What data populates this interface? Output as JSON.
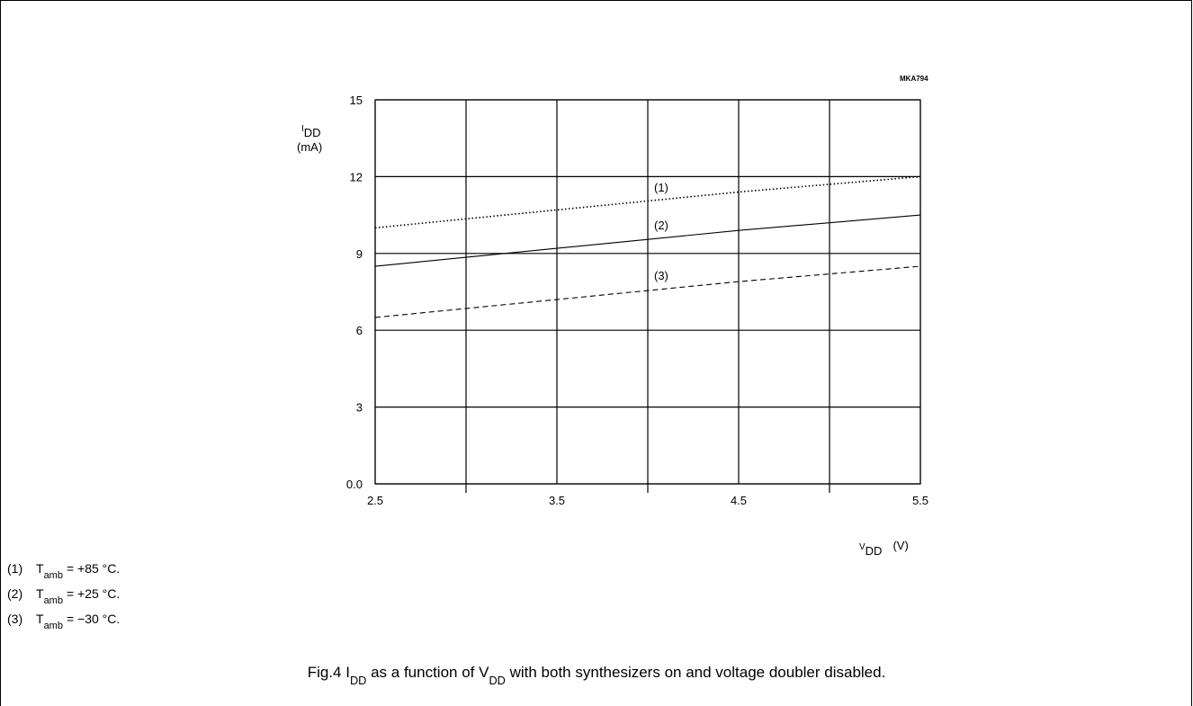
{
  "chart_data": {
    "type": "line",
    "code": "MKA794",
    "title": [
      "Fig.4  I",
      "DD",
      " as a function of V",
      "DD",
      " with both synthesizers on and voltage doubler disabled."
    ],
    "ylabel": [
      "I",
      "DD",
      "(mA)"
    ],
    "xlabel": [
      "V",
      "DD",
      "(V)"
    ],
    "x": [
      2.5,
      3,
      3.5,
      4,
      4.5,
      5,
      5.5
    ],
    "series": [
      {
        "name": "(1)",
        "color": "#000000",
        "style": "dotted",
        "values": [
          10,
          10.35,
          10.7,
          11.05,
          11.4,
          11.7,
          12
        ]
      },
      {
        "name": "(2)",
        "color": "#000000",
        "style": "solid",
        "values": [
          8.5,
          8.85,
          9.2,
          9.55,
          9.9,
          10.2,
          10.5
        ]
      },
      {
        "name": "(3)",
        "color": "#000000",
        "style": "dashed",
        "values": [
          6.5,
          6.85,
          7.2,
          7.55,
          7.9,
          8.2,
          8.5
        ]
      }
    ],
    "xlim": [
      2.5,
      5.5
    ],
    "xticks": [
      2.5,
      3.5,
      4.5,
      5.5
    ],
    "xgrid_minor": [
      3,
      4,
      5
    ],
    "ylim": [
      0,
      15
    ],
    "yticks": [
      {
        "value": 0,
        "label": "0.0"
      },
      3,
      6,
      9,
      12,
      15
    ],
    "grid": true,
    "notes": [
      {
        "label": "(1)",
        "symbol": "T",
        "sub": "amb",
        "text": "= +85 °C."
      },
      {
        "label": "(2)",
        "symbol": "T",
        "sub": "amb",
        "text": "= +25 °C."
      },
      {
        "label": "(3)",
        "symbol": "T",
        "sub": "amb",
        "text": "= −30 °C."
      }
    ]
  }
}
